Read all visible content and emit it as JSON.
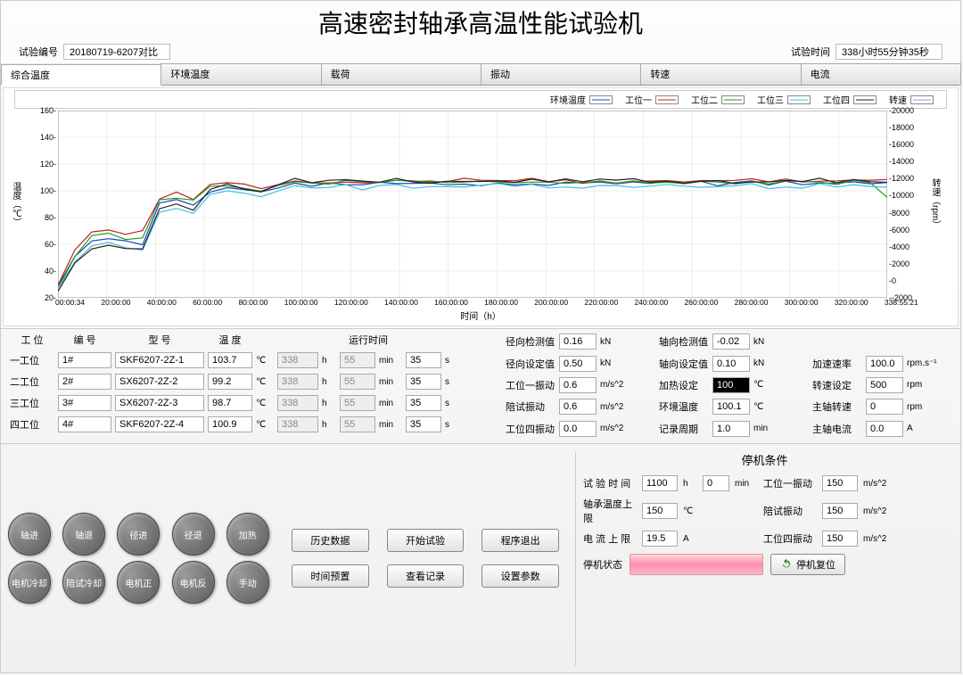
{
  "title": "高速密封轴承高温性能试验机",
  "test_id_label": "试验编号",
  "test_id": "20180719-6207对比",
  "test_time_label": "试验时间",
  "test_time": "338小时55分钟35秒",
  "tabs": [
    "综合温度",
    "环境温度",
    "载荷",
    "振动",
    "转速",
    "电流"
  ],
  "chart": {
    "legend": [
      {
        "label": "环境温度",
        "color": "#2040c0"
      },
      {
        "label": "工位一",
        "color": "#c02020"
      },
      {
        "label": "工位二",
        "color": "#20a020"
      },
      {
        "label": "工位三",
        "color": "#40c0e0"
      },
      {
        "label": "工位四",
        "color": "#202020"
      },
      {
        "label": "转速",
        "color": "#c080e0"
      }
    ],
    "y_left_label": "温度（℃）",
    "y_right_label": "转速（rpm）",
    "y_left_ticks": [
      20,
      40,
      60,
      80,
      100,
      120,
      140,
      160
    ],
    "y_right_ticks": [
      -2000,
      0,
      2000,
      4000,
      6000,
      8000,
      10000,
      12000,
      14000,
      16000,
      18000,
      20000
    ],
    "x_ticks": [
      "00:00:34",
      "20:00:00",
      "40:00:00",
      "60:00:00",
      "80:00:00",
      "100:00:00",
      "120:00:00",
      "140:00:00",
      "160:00:00",
      "180:00:00",
      "200:00:00",
      "220:00:00",
      "240:00:00",
      "260:00:00",
      "280:00:00",
      "300:00:00",
      "320:00:00",
      "338:55:21"
    ],
    "x_label": "时间（h）",
    "y_left_min": 20,
    "y_left_max": 160,
    "series": {
      "env": [
        30,
        50,
        62,
        65,
        63,
        60,
        90,
        92,
        88,
        100,
        103,
        102,
        100,
        102,
        105,
        104,
        105,
        106,
        105,
        105,
        106,
        105,
        105,
        105,
        106,
        105,
        106,
        105,
        106,
        105,
        106,
        105,
        106,
        105,
        106,
        105,
        106,
        105,
        106,
        105,
        105,
        106,
        105,
        106,
        105,
        106,
        105,
        106,
        105,
        105
      ],
      "ws1": [
        30,
        55,
        70,
        72,
        68,
        70,
        95,
        98,
        94,
        104,
        106,
        105,
        103,
        106,
        108,
        107,
        107,
        108,
        107,
        107,
        108,
        107,
        107,
        107,
        108,
        107,
        108,
        107,
        108,
        107,
        108,
        107,
        108,
        107,
        108,
        107,
        108,
        107,
        108,
        107,
        107,
        108,
        107,
        108,
        107,
        108,
        107,
        108,
        107,
        107
      ],
      "ws2": [
        28,
        52,
        66,
        68,
        64,
        66,
        93,
        95,
        92,
        102,
        105,
        103,
        101,
        104,
        107,
        106,
        106,
        107,
        106,
        106,
        107,
        106,
        106,
        106,
        107,
        106,
        107,
        106,
        107,
        106,
        107,
        106,
        107,
        106,
        107,
        106,
        107,
        106,
        107,
        106,
        106,
        107,
        106,
        107,
        106,
        107,
        106,
        107,
        106,
        95
      ],
      "ws3": [
        26,
        48,
        60,
        62,
        58,
        55,
        85,
        87,
        83,
        96,
        100,
        99,
        97,
        100,
        103,
        102,
        103,
        104,
        102,
        103,
        104,
        103,
        103,
        104,
        104,
        103,
        104,
        103,
        104,
        103,
        104,
        103,
        104,
        103,
        104,
        103,
        104,
        103,
        104,
        103,
        103,
        104,
        103,
        104,
        103,
        104,
        103,
        104,
        103,
        103
      ],
      "ws4": [
        25,
        45,
        58,
        60,
        56,
        56,
        88,
        90,
        85,
        100,
        104,
        102,
        100,
        104,
        108,
        106,
        107,
        108,
        106,
        107,
        108,
        107,
        107,
        108,
        108,
        107,
        108,
        107,
        108,
        107,
        108,
        107,
        108,
        107,
        108,
        107,
        108,
        107,
        108,
        107,
        107,
        108,
        107,
        108,
        107,
        108,
        107,
        108,
        107,
        107
      ]
    }
  },
  "ws_header": {
    "pos": "工 位",
    "num": "编 号",
    "model": "型 号",
    "temp": "温 度",
    "runtime": "运行时间"
  },
  "workstations": [
    {
      "pos": "一工位",
      "num": "1#",
      "model": "SKF6207-2Z-1",
      "temp": "103.7",
      "h": "338",
      "m": "55",
      "s": "35"
    },
    {
      "pos": "二工位",
      "num": "2#",
      "model": "SX6207-2Z-2",
      "temp": "99.2",
      "h": "338",
      "m": "55",
      "s": "35"
    },
    {
      "pos": "三工位",
      "num": "3#",
      "model": "SX6207-2Z-3",
      "temp": "98.7",
      "h": "338",
      "m": "55",
      "s": "35"
    },
    {
      "pos": "四工位",
      "num": "4#",
      "model": "SKF6207-2Z-4",
      "temp": "100.9",
      "h": "338",
      "m": "55",
      "s": "35"
    }
  ],
  "readings_left": [
    {
      "label": "径向检测值",
      "val": "0.16",
      "unit": "kN"
    },
    {
      "label": "径向设定值",
      "val": "0.50",
      "unit": "kN"
    },
    {
      "label": "工位一振动",
      "val": "0.6",
      "unit": "m/s^2"
    },
    {
      "label": "陪试振动",
      "val": "0.6",
      "unit": "m/s^2"
    },
    {
      "label": "工位四振动",
      "val": "0.0",
      "unit": "m/s^2"
    }
  ],
  "readings_mid": [
    {
      "label": "轴向检测值",
      "val": "-0.02",
      "unit": "kN"
    },
    {
      "label": "轴向设定值",
      "val": "0.10",
      "unit": "kN"
    },
    {
      "label": "加热设定",
      "val": "100",
      "unit": "℃",
      "hl": true
    },
    {
      "label": "环境温度",
      "val": "100.1",
      "unit": "℃"
    },
    {
      "label": "记录周期",
      "val": "1.0",
      "unit": "min"
    }
  ],
  "readings_right": [
    {
      "label": "",
      "val": "",
      "unit": ""
    },
    {
      "label": "加速速率",
      "val": "100.0",
      "unit": "rpm.s⁻¹"
    },
    {
      "label": "转速设定",
      "val": "500",
      "unit": "rpm"
    },
    {
      "label": "主轴转速",
      "val": "0",
      "unit": "rpm"
    },
    {
      "label": "主轴电流",
      "val": "0.0",
      "unit": "A"
    }
  ],
  "circle_btns": [
    "轴进",
    "轴退",
    "径进",
    "径退",
    "加热",
    "电机冷却",
    "陪试冷却",
    "电机正",
    "电机反",
    "手动"
  ],
  "mid_btns": [
    "历史数据",
    "开始试验",
    "程序退出",
    "时间预置",
    "查看记录",
    "设置参数"
  ],
  "stop": {
    "title": "停机条件",
    "rows": [
      {
        "l1": "试 验 时 间",
        "v1": "1100",
        "u1": "h",
        "v1b": "0",
        "u1b": "min",
        "l2": "工位一振动",
        "v2": "150",
        "u2": "m/s^2"
      },
      {
        "l1": "轴承温度上限",
        "v1": "150",
        "u1": "℃",
        "v1b": "",
        "u1b": "",
        "l2": "陪试振动",
        "v2": "150",
        "u2": "m/s^2"
      },
      {
        "l1": "电 流 上 限",
        "v1": "19.5",
        "u1": "A",
        "v1b": "",
        "u1b": "",
        "l2": "工位四振动",
        "v2": "150",
        "u2": "m/s^2"
      }
    ],
    "status_label": "停机状态",
    "reset_label": "停机复位"
  }
}
